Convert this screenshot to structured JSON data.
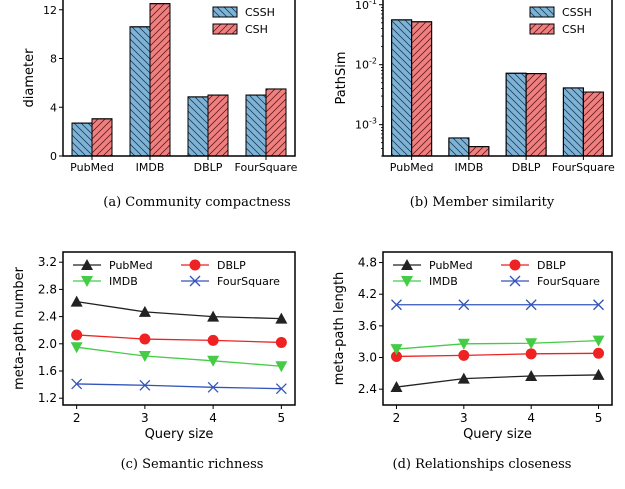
{
  "colors": {
    "cssh": "#7fb3d5",
    "csh": "#f08080",
    "pubmed": "#222222",
    "imdb": "#44cc44",
    "dblp": "#ee2222",
    "foursquare": "#3355bb"
  },
  "chart_data": [
    {
      "type": "bar",
      "id": "a",
      "categories": [
        "PubMed",
        "IMDB",
        "DBLP",
        "FourSquare"
      ],
      "series": [
        {
          "name": "CSSH",
          "values": [
            2.7,
            10.6,
            4.85,
            5.0
          ],
          "color": "#7fb3d5",
          "hatch": "backslash"
        },
        {
          "name": "CSH",
          "values": [
            3.05,
            12.5,
            5.0,
            5.5
          ],
          "color": "#f08080",
          "hatch": "slash"
        }
      ],
      "ylabel": "diameter",
      "ylim": [
        0,
        12.8
      ],
      "yticks": [
        0,
        4,
        8,
        12
      ],
      "ytick_labels": [
        "0",
        "4",
        "8",
        "12"
      ],
      "legend": "top-right",
      "caption": "(a)  Community compactness"
    },
    {
      "type": "bar",
      "id": "b",
      "scale": "log",
      "categories": [
        "PubMed",
        "IMDB",
        "DBLP",
        "FourSquare"
      ],
      "series": [
        {
          "name": "CSSH",
          "values": [
            0.056,
            0.0006,
            0.0072,
            0.0041
          ],
          "color": "#7fb3d5",
          "hatch": "backslash"
        },
        {
          "name": "CSH",
          "values": [
            0.052,
            0.00043,
            0.0071,
            0.0035
          ],
          "color": "#f08080",
          "hatch": "slash"
        }
      ],
      "ylabel": "PathSim",
      "ylim": [
        0.0003,
        0.12
      ],
      "yticks": [
        0.001,
        0.01,
        0.1
      ],
      "ytick_labels": [
        "10^-3",
        "10^-2",
        "10^-1"
      ],
      "legend": "top-right",
      "caption": "(b)  Member similarity"
    },
    {
      "type": "line",
      "id": "c",
      "x": [
        2,
        3,
        4,
        5
      ],
      "series": [
        {
          "name": "PubMed",
          "values": [
            2.62,
            2.47,
            2.4,
            2.37
          ],
          "color": "#222222",
          "marker": "triangle-up"
        },
        {
          "name": "DBLP",
          "values": [
            2.13,
            2.07,
            2.05,
            2.02
          ],
          "color": "#ee2222",
          "marker": "circle"
        },
        {
          "name": "IMDB",
          "values": [
            1.95,
            1.82,
            1.75,
            1.67
          ],
          "color": "#44cc44",
          "marker": "triangle-down"
        },
        {
          "name": "FourSquare",
          "values": [
            1.41,
            1.39,
            1.36,
            1.34
          ],
          "color": "#3355bb",
          "marker": "x"
        }
      ],
      "xlabel": "Query size",
      "ylabel": "meta-path number",
      "xlim": [
        1.8,
        5.2
      ],
      "ylim": [
        1.1,
        3.35
      ],
      "xticks": [
        2,
        3,
        4,
        5
      ],
      "yticks": [
        1.2,
        1.6,
        2.0,
        2.4,
        2.8,
        3.2
      ],
      "ytick_labels": [
        "1.2",
        "1.6",
        "2.0",
        "2.4",
        "2.8",
        "3.2"
      ],
      "legend": "top",
      "caption": "(c)  Semantic richness"
    },
    {
      "type": "line",
      "id": "d",
      "x": [
        2,
        3,
        4,
        5
      ],
      "series": [
        {
          "name": "PubMed",
          "values": [
            2.44,
            2.6,
            2.65,
            2.67
          ],
          "color": "#222222",
          "marker": "triangle-up"
        },
        {
          "name": "DBLP",
          "values": [
            3.02,
            3.04,
            3.07,
            3.08
          ],
          "color": "#ee2222",
          "marker": "circle"
        },
        {
          "name": "IMDB",
          "values": [
            3.16,
            3.26,
            3.27,
            3.32
          ],
          "color": "#44cc44",
          "marker": "triangle-down"
        },
        {
          "name": "FourSquare",
          "values": [
            4.0,
            4.0,
            4.0,
            4.0
          ],
          "color": "#3355bb",
          "marker": "x"
        }
      ],
      "xlabel": "Query size",
      "ylabel": "meta-path length",
      "xlim": [
        1.8,
        5.2
      ],
      "ylim": [
        2.1,
        5.0
      ],
      "xticks": [
        2,
        3,
        4,
        5
      ],
      "yticks": [
        2.4,
        3.0,
        3.6,
        4.2,
        4.8
      ],
      "ytick_labels": [
        "2.4",
        "3.0",
        "3.6",
        "4.2",
        "4.8"
      ],
      "legend": "top",
      "caption": "(d)  Relationships closeness"
    }
  ]
}
